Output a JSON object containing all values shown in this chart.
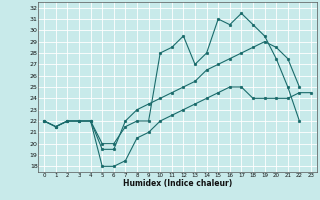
{
  "title": "",
  "xlabel": "Humidex (Indice chaleur)",
  "bg_color": "#c8eaea",
  "line_color": "#1a6b6b",
  "grid_color": "#ffffff",
  "xlim": [
    -0.5,
    23.5
  ],
  "ylim": [
    17.5,
    32.5
  ],
  "yticks": [
    18,
    19,
    20,
    21,
    22,
    23,
    24,
    25,
    26,
    27,
    28,
    29,
    30,
    31,
    32
  ],
  "xticks": [
    0,
    1,
    2,
    3,
    4,
    5,
    6,
    7,
    8,
    9,
    10,
    11,
    12,
    13,
    14,
    15,
    16,
    17,
    18,
    19,
    20,
    21,
    22,
    23
  ],
  "line1_x": [
    0,
    1,
    2,
    3,
    4,
    5,
    6,
    7,
    8,
    9,
    10,
    11,
    12,
    13,
    14,
    15,
    16,
    17,
    18,
    19,
    20,
    21,
    22
  ],
  "line1_y": [
    22,
    21.5,
    22,
    22,
    22,
    20,
    20,
    21.5,
    22,
    22,
    28,
    28.5,
    29.5,
    27,
    28,
    31,
    30.5,
    31.5,
    30.5,
    29.5,
    27.5,
    25,
    22
  ],
  "line2_x": [
    0,
    1,
    2,
    3,
    4,
    5,
    6,
    7,
    8,
    9,
    10,
    11,
    12,
    13,
    14,
    15,
    16,
    17,
    18,
    19,
    20,
    21,
    22
  ],
  "line2_y": [
    22,
    21.5,
    22,
    22,
    22,
    19.5,
    19.5,
    22,
    23,
    23.5,
    24,
    24.5,
    25,
    25.5,
    26.5,
    27,
    27.5,
    28,
    28.5,
    29,
    28.5,
    27.5,
    25
  ],
  "line3_x": [
    0,
    1,
    2,
    3,
    4,
    5,
    6,
    7,
    8,
    9,
    10,
    11,
    12,
    13,
    14,
    15,
    16,
    17,
    18,
    19,
    20,
    21,
    22,
    23
  ],
  "line3_y": [
    22,
    21.5,
    22,
    22,
    22,
    18,
    18,
    18.5,
    20.5,
    21,
    22,
    22.5,
    23,
    23.5,
    24,
    24.5,
    25,
    25,
    24,
    24,
    24,
    24,
    24.5,
    24.5
  ]
}
